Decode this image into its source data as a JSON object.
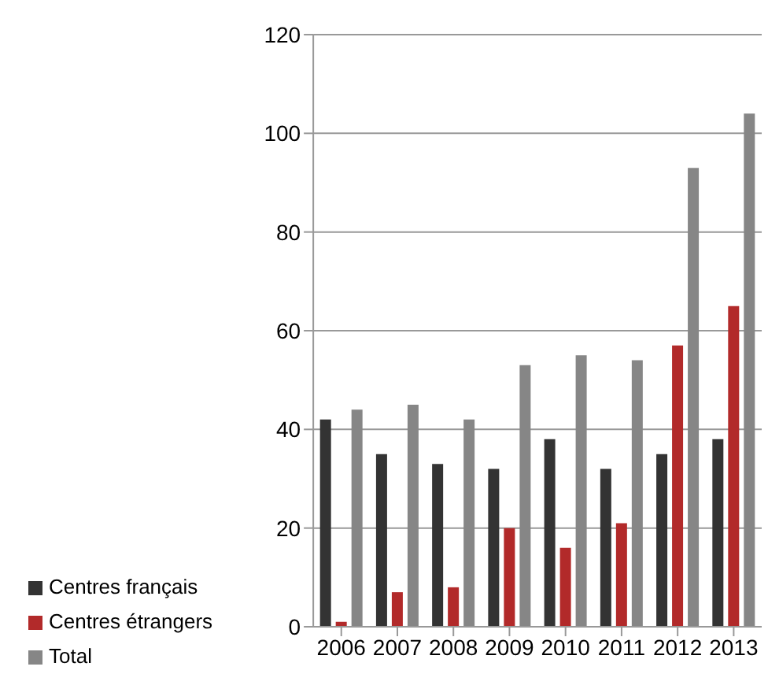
{
  "chart_data": {
    "type": "bar",
    "categories": [
      "2006",
      "2007",
      "2008",
      "2009",
      "2010",
      "2011",
      "2012",
      "2013"
    ],
    "series": [
      {
        "name": "Centres français",
        "color": "#333333",
        "values": [
          42,
          35,
          33,
          32,
          38,
          32,
          35,
          38
        ]
      },
      {
        "name": "Centres étrangers",
        "color": "#b22a2a",
        "values": [
          1,
          7,
          8,
          20,
          16,
          21,
          57,
          65
        ]
      },
      {
        "name": "Total",
        "color": "#868686",
        "values": [
          44,
          45,
          42,
          53,
          55,
          54,
          93,
          104
        ]
      }
    ],
    "ylim": [
      0,
      120
    ],
    "yticks": [
      0,
      20,
      40,
      60,
      80,
      100,
      120
    ],
    "grid": "y",
    "legend": "bottom left"
  }
}
